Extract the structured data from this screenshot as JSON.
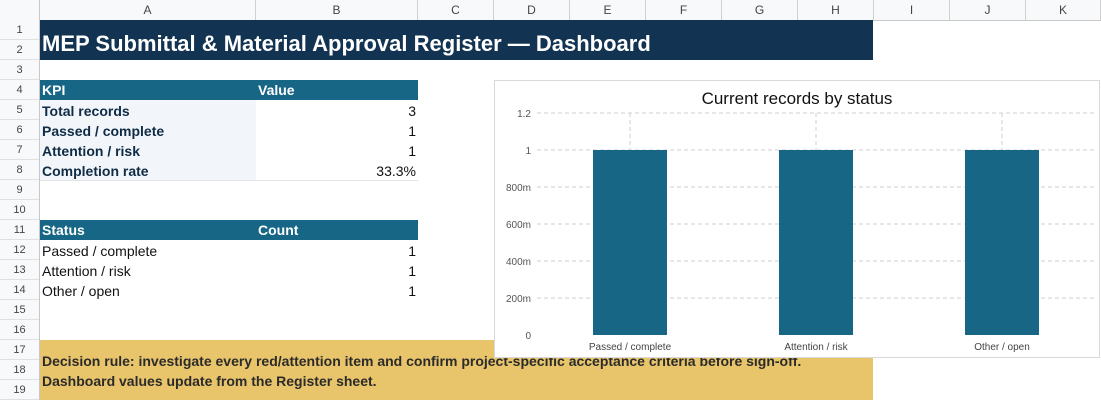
{
  "columns": [
    "A",
    "B",
    "C",
    "D",
    "E",
    "F",
    "G",
    "H",
    "I",
    "J",
    "K"
  ],
  "rows": [
    "1",
    "2",
    "3",
    "4",
    "5",
    "6",
    "7",
    "8",
    "9",
    "10",
    "11",
    "12",
    "13",
    "14",
    "15",
    "16",
    "17",
    "18",
    "19"
  ],
  "title": "MEP Submittal & Material Approval Register — Dashboard",
  "kpi_table": {
    "header_label": "KPI",
    "header_value": "Value",
    "rows": [
      {
        "label": "Total records",
        "value": "3"
      },
      {
        "label": "Passed / complete",
        "value": "1"
      },
      {
        "label": "Attention / risk",
        "value": "1"
      },
      {
        "label": "Completion rate",
        "value": "33.3%"
      }
    ]
  },
  "status_table": {
    "header_label": "Status",
    "header_value": "Count",
    "rows": [
      {
        "label": "Passed / complete",
        "value": "1"
      },
      {
        "label": "Attention / risk",
        "value": "1"
      },
      {
        "label": "Other / open",
        "value": "1"
      }
    ]
  },
  "decision": {
    "line1": "Decision rule: investigate every red/attention item and confirm project-specific acceptance criteria before sign-off.",
    "line2": "Dashboard values update from the Register sheet."
  },
  "colors": {
    "title_bg": "#123452",
    "header_bg": "#176685",
    "bar": "#176685",
    "decision_bg": "#e8c46b"
  },
  "chart_data": {
    "type": "bar",
    "title": "Current records by status",
    "categories": [
      "Passed / complete",
      "Attention / risk",
      "Other / open"
    ],
    "values": [
      1,
      1,
      1
    ],
    "ylim": [
      0,
      1.2
    ],
    "yticks": [
      0,
      0.2,
      0.4,
      0.6,
      0.8,
      1,
      1.2
    ],
    "ytick_labels": [
      "0",
      "200m",
      "400m",
      "600m",
      "800m",
      "1",
      "1.2"
    ],
    "grid": true,
    "legend": "none"
  }
}
